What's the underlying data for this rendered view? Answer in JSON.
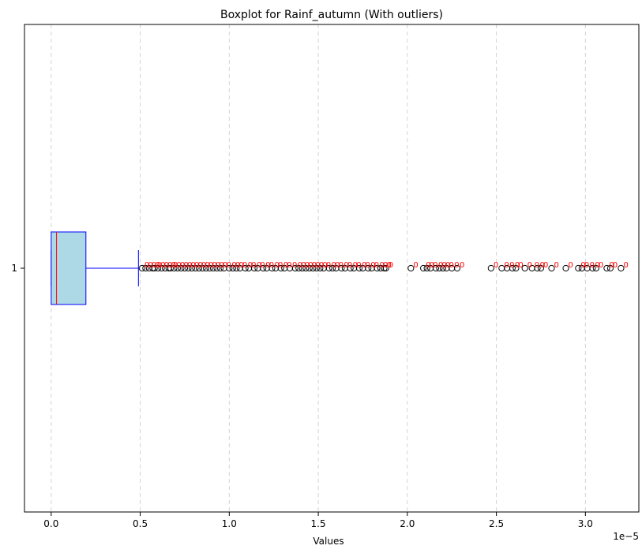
{
  "chart_data": {
    "type": "boxplot",
    "orientation": "horizontal",
    "title": "Boxplot for Rainf_autumn (With outliers)",
    "xlabel": "Values",
    "ylabel": "",
    "offset_text": "1e−5",
    "xlim": [
      -0.15,
      3.3
    ],
    "x_scale_factor": 1e-05,
    "x_ticks": [
      0.0,
      0.5,
      1.0,
      1.5,
      2.0,
      2.5,
      3.0
    ],
    "x_tick_labels": [
      "0.0",
      "0.5",
      "1.0",
      "1.5",
      "2.0",
      "2.5",
      "3.0"
    ],
    "y_tick_labels": [
      "1"
    ],
    "grid": {
      "x": true,
      "y": false,
      "style": "dashed"
    },
    "box": {
      "category": "1",
      "whisker_low": 0.0,
      "q1": 0.0,
      "median": 0.03,
      "q3": 0.195,
      "whisker_high": 0.49
    },
    "outliers": [
      0.51,
      0.53,
      0.55,
      0.57,
      0.58,
      0.6,
      0.62,
      0.64,
      0.66,
      0.67,
      0.69,
      0.71,
      0.73,
      0.75,
      0.77,
      0.79,
      0.81,
      0.83,
      0.85,
      0.87,
      0.89,
      0.91,
      0.93,
      0.95,
      0.97,
      1.0,
      1.02,
      1.04,
      1.06,
      1.09,
      1.11,
      1.14,
      1.16,
      1.19,
      1.21,
      1.24,
      1.26,
      1.29,
      1.31,
      1.34,
      1.37,
      1.39,
      1.41,
      1.43,
      1.45,
      1.47,
      1.49,
      1.51,
      1.53,
      1.56,
      1.58,
      1.6,
      1.63,
      1.65,
      1.68,
      1.7,
      1.73,
      1.75,
      1.78,
      1.8,
      1.83,
      1.85,
      1.87,
      1.88,
      2.02,
      2.09,
      2.11,
      2.13,
      2.16,
      2.18,
      2.2,
      2.22,
      2.25,
      2.28,
      2.47,
      2.53,
      2.56,
      2.59,
      2.61,
      2.66,
      2.7,
      2.73,
      2.75,
      2.81,
      2.89,
      2.96,
      2.98,
      3.01,
      3.04,
      3.06,
      3.12,
      3.14,
      3.2
    ],
    "outlier_label_text": "0",
    "colors": {
      "box_fill": "#add8e6",
      "box_edge": "#0000ff",
      "median": "#ff0000",
      "whisker": "#0000ff",
      "outlier_marker": "#000000",
      "outlier_label": "#ff0000",
      "grid": "#d3d3d3"
    }
  }
}
